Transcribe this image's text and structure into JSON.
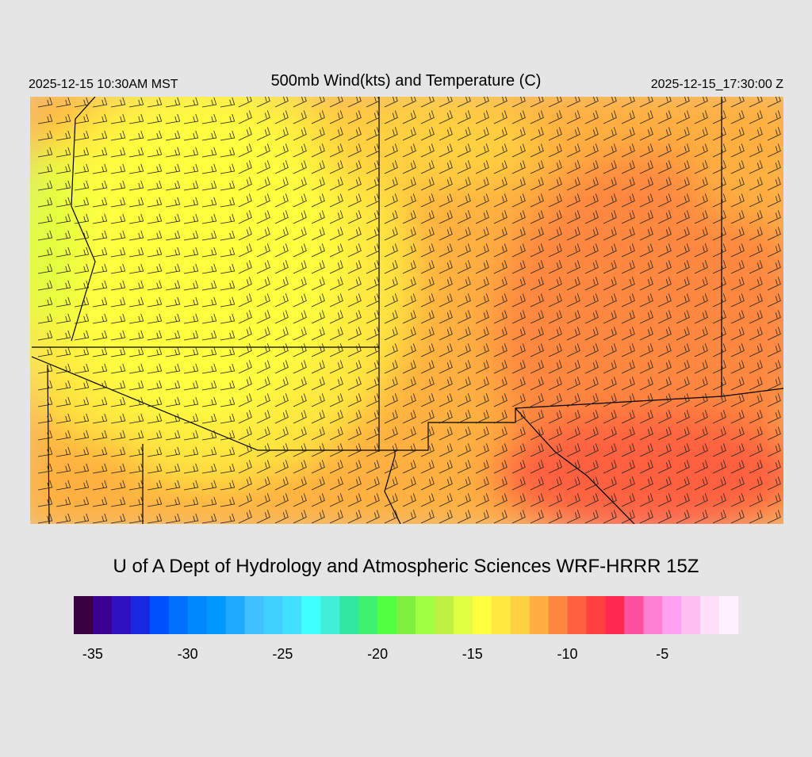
{
  "header": {
    "left": "2025-12-15 10:30AM MST",
    "title": "500mb Wind(kts) and Temperature (C)",
    "right": "2025-12-15_17:30:00 Z"
  },
  "credit": "U of A Dept of Hydrology and Atmospheric Sciences WRF-HRRR 15Z",
  "colorbar": {
    "lim": [
      -36,
      -1
    ],
    "ticks": [
      -35,
      -30,
      -25,
      -20,
      -15,
      -10,
      -5
    ],
    "colors": [
      "#3a0040",
      "#3b0090",
      "#3010c0",
      "#1828e0",
      "#0050ff",
      "#0070ff",
      "#0088ff",
      "#0098ff",
      "#20a8ff",
      "#40c0ff",
      "#40d0ff",
      "#40e0ff",
      "#40ffff",
      "#40f0d8",
      "#30e8a0",
      "#40f070",
      "#50ff40",
      "#80f040",
      "#a0ff40",
      "#c0f040",
      "#e0ff40",
      "#ffff40",
      "#ffe840",
      "#ffd040",
      "#ffb040",
      "#ff8840",
      "#ff6040",
      "#ff4040",
      "#ff2850",
      "#ff50a0",
      "#ff80d0",
      "#ffa0f0",
      "#ffc0f0",
      "#ffe0f8",
      "#fff0ff"
    ]
  }
}
